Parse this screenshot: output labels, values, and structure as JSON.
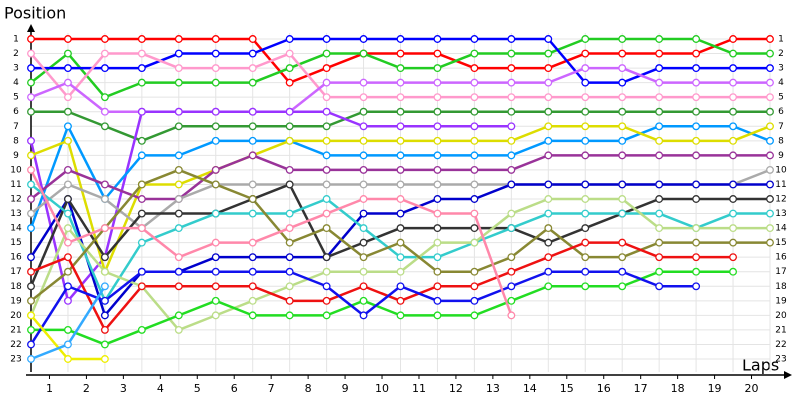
{
  "chart_data": {
    "type": "line",
    "title": "Position",
    "x_label": "Laps",
    "x": [
      0,
      1,
      2,
      3,
      4,
      5,
      6,
      7,
      8,
      9,
      10,
      11,
      12,
      13,
      14,
      15,
      16,
      17,
      18,
      19,
      20
    ],
    "xlim": [
      0,
      20
    ],
    "xticks": [
      {
        "value": 0.5,
        "label": "1"
      },
      {
        "value": 1.5,
        "label": "2"
      },
      {
        "value": 2.5,
        "label": "3"
      },
      {
        "value": 3.5,
        "label": "4"
      },
      {
        "value": 4.5,
        "label": "5"
      },
      {
        "value": 5.5,
        "label": "6"
      },
      {
        "value": 6.5,
        "label": "7"
      },
      {
        "value": 7.5,
        "label": "8"
      },
      {
        "value": 8.5,
        "label": "9"
      },
      {
        "value": 9.5,
        "label": "10"
      },
      {
        "value": 10.5,
        "label": "11"
      },
      {
        "value": 11.5,
        "label": "12"
      },
      {
        "value": 12.5,
        "label": "13"
      },
      {
        "value": 13.5,
        "label": "14"
      },
      {
        "value": 14.5,
        "label": "15"
      },
      {
        "value": 15.5,
        "label": "16"
      },
      {
        "value": 16.5,
        "label": "17"
      },
      {
        "value": 17.5,
        "label": "18"
      },
      {
        "value": 18.5,
        "label": "19"
      },
      {
        "value": 19.5,
        "label": "20"
      }
    ],
    "ylim": [
      1,
      23
    ],
    "y_inverted": true,
    "yticks": [
      1,
      2,
      3,
      4,
      5,
      6,
      7,
      8,
      9,
      10,
      11,
      12,
      13,
      14,
      15,
      16,
      17,
      18,
      19,
      20,
      21,
      22,
      23
    ],
    "grid": true,
    "series": [
      {
        "color": "#ff0000",
        "values": [
          1,
          1,
          1,
          1,
          1,
          1,
          1,
          4,
          3,
          2,
          2,
          2,
          3,
          3,
          3,
          2,
          2,
          2,
          2,
          1,
          1
        ]
      },
      {
        "color": "#22cc22",
        "values": [
          4,
          2,
          5,
          4,
          4,
          4,
          4,
          3,
          2,
          2,
          3,
          3,
          2,
          2,
          2,
          1,
          1,
          1,
          1,
          2,
          2
        ]
      },
      {
        "color": "#0000ff",
        "values": [
          3,
          3,
          3,
          3,
          2,
          2,
          2,
          1,
          1,
          1,
          1,
          1,
          1,
          1,
          1,
          4,
          4,
          3,
          3,
          3,
          3
        ]
      },
      {
        "color": "#ff99cc",
        "values": [
          2,
          5,
          2,
          2,
          3,
          3,
          3,
          2,
          5,
          5,
          5,
          5,
          5,
          5,
          5,
          5,
          5,
          5,
          5,
          5,
          5
        ]
      },
      {
        "color": "#cc66ff",
        "values": [
          5,
          4,
          6,
          6,
          6,
          6,
          6,
          6,
          4,
          4,
          4,
          4,
          4,
          4,
          4,
          3,
          3,
          4,
          4,
          4,
          4
        ]
      },
      {
        "color": "#339933",
        "values": [
          6,
          6,
          7,
          8,
          7,
          7,
          7,
          7,
          7,
          6,
          6,
          6,
          6,
          6,
          6,
          6,
          6,
          6,
          6,
          6,
          6
        ]
      },
      {
        "color": "#9933ff",
        "values": [
          8,
          19,
          16,
          6,
          6,
          6,
          6,
          6,
          6,
          7,
          7,
          7,
          7,
          7,
          null,
          null,
          null,
          null,
          null,
          null,
          null
        ]
      },
      {
        "color": "#0099ff",
        "values": [
          14,
          7,
          12,
          9,
          9,
          8,
          8,
          8,
          9,
          9,
          9,
          9,
          9,
          9,
          8,
          8,
          8,
          7,
          7,
          7,
          8
        ]
      },
      {
        "color": "#dddd00",
        "values": [
          9,
          8,
          17,
          11,
          11,
          10,
          9,
          8,
          8,
          8,
          8,
          8,
          8,
          8,
          7,
          7,
          7,
          8,
          8,
          8,
          7
        ]
      },
      {
        "color": "#993399",
        "values": [
          12,
          10,
          11,
          12,
          12,
          10,
          9,
          10,
          10,
          10,
          10,
          10,
          10,
          10,
          9,
          9,
          9,
          9,
          9,
          9,
          9
        ]
      },
      {
        "color": "#aaaaaa",
        "values": [
          13,
          11,
          12,
          14,
          12,
          11,
          11,
          11,
          11,
          11,
          11,
          11,
          11,
          11,
          11,
          11,
          11,
          11,
          11,
          11,
          10
        ]
      },
      {
        "color": "#0000cc",
        "values": [
          16,
          12,
          20,
          17,
          17,
          16,
          16,
          16,
          16,
          13,
          13,
          12,
          12,
          11,
          11,
          11,
          11,
          11,
          11,
          11,
          11
        ]
      },
      {
        "color": "#333333",
        "values": [
          18,
          12,
          16,
          13,
          13,
          13,
          12,
          11,
          16,
          15,
          14,
          14,
          14,
          14,
          15,
          14,
          13,
          12,
          12,
          12,
          12
        ]
      },
      {
        "color": "#33cccc",
        "values": [
          11,
          13,
          19,
          15,
          14,
          13,
          13,
          13,
          12,
          14,
          16,
          16,
          15,
          14,
          13,
          13,
          13,
          13,
          14,
          13,
          13
        ]
      },
      {
        "color": "#bbdd88",
        "values": [
          20,
          14,
          17,
          18,
          21,
          20,
          19,
          18,
          17,
          17,
          17,
          15,
          15,
          13,
          12,
          12,
          12,
          14,
          14,
          14,
          14
        ]
      },
      {
        "color": "#888833",
        "values": [
          19,
          17,
          14,
          11,
          10,
          11,
          12,
          15,
          14,
          16,
          15,
          17,
          17,
          16,
          14,
          16,
          16,
          15,
          15,
          15,
          15
        ]
      },
      {
        "color": "#ee1111",
        "values": [
          17,
          16,
          21,
          18,
          18,
          18,
          18,
          19,
          19,
          18,
          19,
          18,
          18,
          17,
          16,
          15,
          15,
          16,
          16,
          16,
          null
        ]
      },
      {
        "color": "#22dd22",
        "values": [
          21,
          21,
          22,
          21,
          20,
          19,
          20,
          20,
          20,
          19,
          20,
          20,
          20,
          19,
          18,
          18,
          18,
          17,
          17,
          17,
          null
        ]
      },
      {
        "color": "#1111ee",
        "values": [
          22,
          18,
          19,
          17,
          17,
          17,
          17,
          17,
          18,
          20,
          18,
          19,
          19,
          18,
          17,
          17,
          17,
          18,
          18,
          null,
          null
        ]
      },
      {
        "color": "#ff88aa",
        "values": [
          10,
          15,
          14,
          14,
          16,
          15,
          15,
          14,
          13,
          12,
          12,
          13,
          13,
          20,
          null,
          null,
          null,
          null,
          null,
          null,
          null
        ]
      },
      {
        "color": "#eeee00",
        "values": [
          20,
          23,
          23,
          null,
          null,
          null,
          null,
          null,
          null,
          null,
          null,
          null,
          null,
          null,
          null,
          null,
          null,
          null,
          null,
          null,
          null
        ]
      },
      {
        "color": "#33aaff",
        "values": [
          23,
          22,
          18,
          null,
          null,
          null,
          null,
          null,
          null,
          null,
          null,
          null,
          null,
          null,
          null,
          null,
          null,
          null,
          null,
          null,
          null
        ]
      }
    ]
  }
}
